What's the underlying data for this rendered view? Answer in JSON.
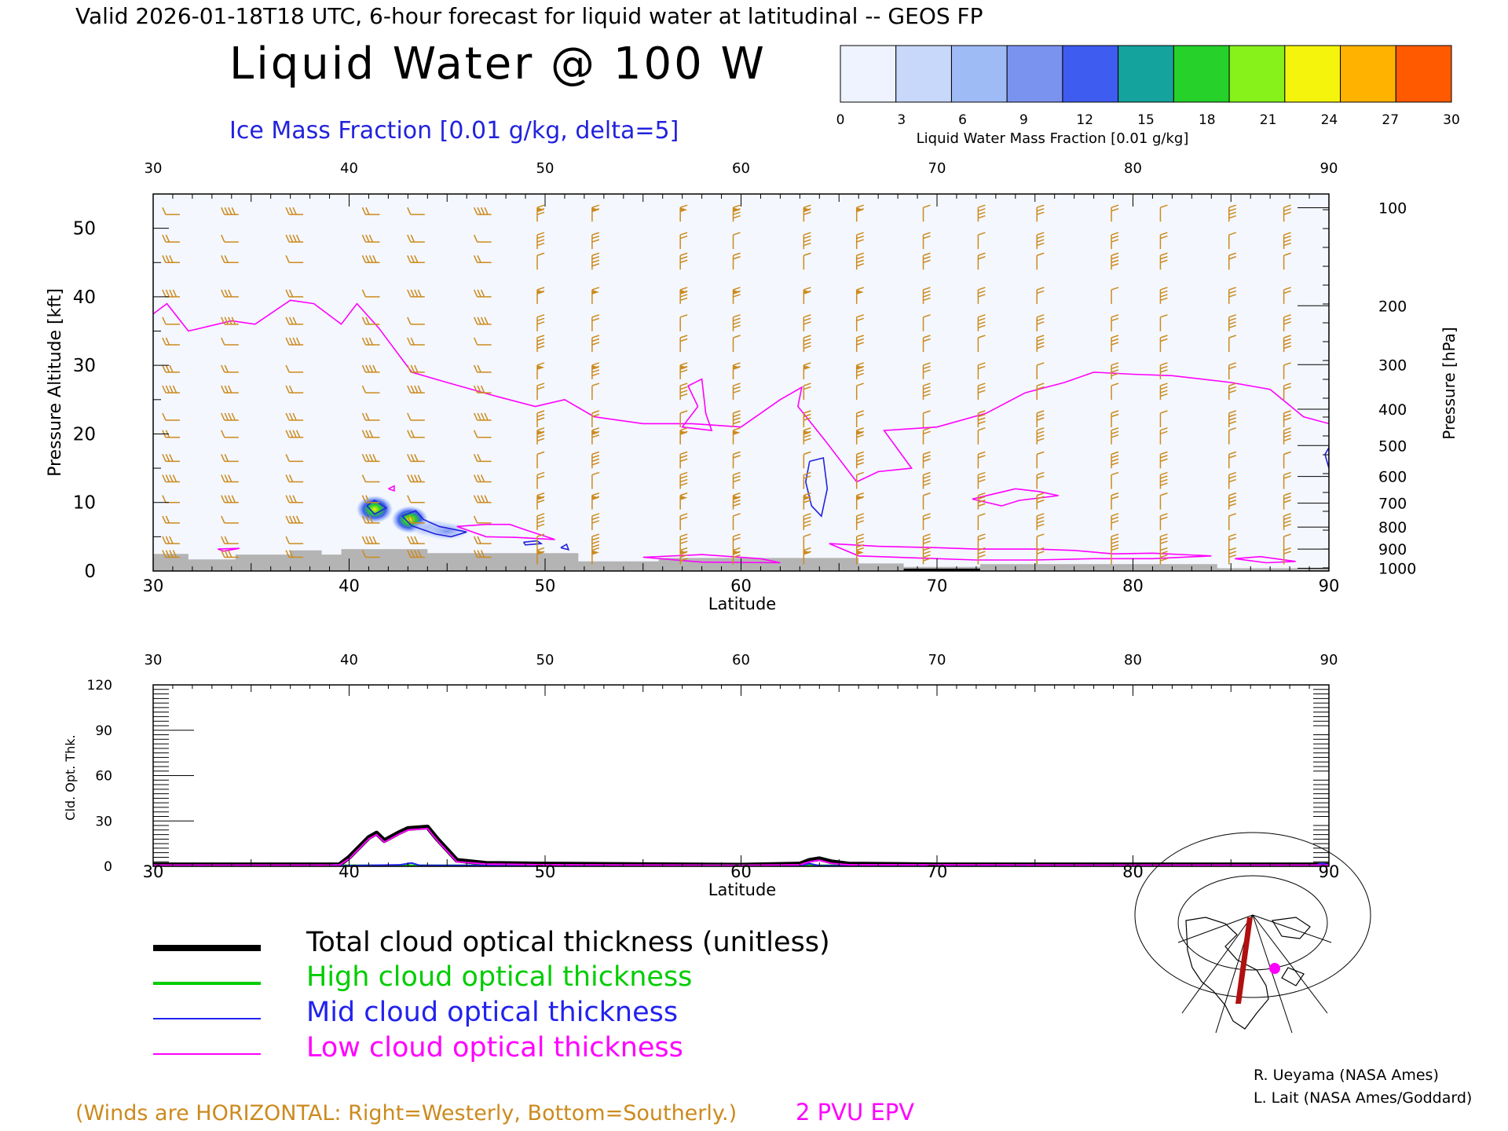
{
  "header": {
    "valid_line": "Valid 2026-01-18T18 UTC, 6-hour forecast for liquid water at latitudinal -- GEOS FP",
    "title": "Liquid Water @ 100 W",
    "subtitle": "Ice Mass Fraction [0.01 g/kg, delta=5]"
  },
  "colorbar": {
    "label": "Liquid Water Mass Fraction [0.01 g/kg]",
    "ticks": [
      "0",
      "3",
      "6",
      "9",
      "12",
      "15",
      "18",
      "21",
      "24",
      "27",
      "30"
    ],
    "colors": [
      "#eef3ff",
      "#c7d8fb",
      "#9fbbf6",
      "#7a93ef",
      "#3f5cf0",
      "#14a39d",
      "#26d12a",
      "#86f21a",
      "#f4f40c",
      "#ffb200",
      "#ff5a00"
    ]
  },
  "colors": {
    "ice_contour": "#2222dd",
    "epv": "#ff00ff",
    "wind_barb": "#cc8a1e",
    "terrain": "#b4b4b4",
    "liquid_water_bg": "#f4f7fd",
    "high_cloud": "#00cc00",
    "mid_cloud": "#2222ee",
    "low_cloud": "#ff00ff",
    "total_cloud": "#000000",
    "flight_track": "#b01010",
    "site_marker": "#ff00ff"
  },
  "chart_data": [
    {
      "type": "line",
      "name": "upper-panel",
      "xlim": [
        30,
        90
      ],
      "x_ticks": [
        "30",
        "40",
        "50",
        "60",
        "70",
        "80",
        "90"
      ],
      "xlabel": "Latitude",
      "ylabel": "Pressure Altitude [kft]",
      "ylim": [
        0,
        55
      ],
      "y_ticks": [
        "0",
        "10",
        "20",
        "30",
        "40",
        "50"
      ],
      "y2label": "Pressure [hPa]",
      "pressure_levels": [
        {
          "label": "100",
          "kft": 53.0
        },
        {
          "label": "200",
          "kft": 38.7
        },
        {
          "label": "300",
          "kft": 30.1
        },
        {
          "label": "400",
          "kft": 23.6
        },
        {
          "label": "500",
          "kft": 18.3
        },
        {
          "label": "600",
          "kft": 13.8
        },
        {
          "label": "700",
          "kft": 9.9
        },
        {
          "label": "800",
          "kft": 6.4
        },
        {
          "label": "900",
          "kft": 3.2
        },
        {
          "label": "1000",
          "kft": 0.4
        }
      ],
      "epv_2pvu": {
        "name": "2 PVU EPV",
        "tropopause": [
          [
            30,
            37.5
          ],
          [
            30.7,
            39.0
          ],
          [
            31.8,
            35.0
          ],
          [
            34,
            36.5
          ],
          [
            35.2,
            36.0
          ],
          [
            37,
            39.5
          ],
          [
            38.2,
            39.0
          ],
          [
            39.6,
            36.0
          ],
          [
            40.4,
            39.0
          ],
          [
            41.5,
            35.5
          ],
          [
            43.2,
            29.0
          ],
          [
            45,
            27.5
          ],
          [
            47.5,
            25.5
          ],
          [
            49.5,
            24.0
          ],
          [
            51,
            25.0
          ],
          [
            52.5,
            22.5
          ],
          [
            55,
            21.5
          ],
          [
            57.5,
            21.5
          ],
          [
            60,
            21.0
          ],
          [
            62,
            25.0
          ],
          [
            63.1,
            26.8
          ],
          [
            62.9,
            24.0
          ],
          [
            64.3,
            19.0
          ],
          [
            65.9,
            13.0
          ],
          [
            67,
            14.5
          ],
          [
            68.7,
            15.0
          ],
          [
            67.3,
            20.5
          ],
          [
            70,
            21.0
          ],
          [
            72.5,
            23.0
          ],
          [
            74.5,
            26.0
          ],
          [
            76.5,
            27.5
          ],
          [
            78,
            29.0
          ],
          [
            80,
            28.7
          ],
          [
            82,
            28.5
          ],
          [
            85,
            27.5
          ],
          [
            87,
            26.5
          ],
          [
            88.7,
            22.5
          ],
          [
            90,
            21.5
          ]
        ],
        "closed_lobe": [
          [
            57.8,
            24.0
          ],
          [
            57.0,
            21.0
          ],
          [
            58.5,
            20.5
          ],
          [
            58.2,
            23.0
          ],
          [
            58.0,
            28.0
          ],
          [
            57.3,
            27.0
          ],
          [
            57.8,
            24.0
          ]
        ],
        "low_level_a": [
          [
            64.5,
            4.0
          ],
          [
            67,
            3.6
          ],
          [
            70,
            3.4
          ],
          [
            72,
            3.2
          ],
          [
            75,
            3.2
          ],
          [
            77,
            3.0
          ],
          [
            79,
            2.5
          ],
          [
            81,
            2.6
          ],
          [
            84,
            2.2
          ],
          [
            81,
            1.8
          ],
          [
            78,
            1.8
          ],
          [
            75,
            1.6
          ],
          [
            72,
            1.6
          ],
          [
            69,
            1.9
          ],
          [
            66,
            2.2
          ],
          [
            64.5,
            4.0
          ]
        ],
        "low_level_b": [
          [
            61,
            1.8
          ],
          [
            58,
            2.4
          ],
          [
            55,
            2.0
          ],
          [
            58,
            1.3
          ],
          [
            62,
            1.2
          ],
          [
            61,
            1.8
          ]
        ],
        "low_level_c": [
          [
            71.8,
            10.5
          ],
          [
            74,
            12.0
          ],
          [
            75.2,
            11.6
          ],
          [
            76.2,
            11.0
          ],
          [
            74.2,
            10.3
          ],
          [
            73.3,
            9.5
          ],
          [
            71.8,
            10.5
          ]
        ],
        "low_level_d": [
          [
            45.5,
            6.5
          ],
          [
            47,
            6.8
          ],
          [
            48.2,
            6.8
          ],
          [
            49,
            6.0
          ],
          [
            50.5,
            4.6
          ],
          [
            48.5,
            4.9
          ],
          [
            47,
            5.0
          ],
          [
            45.5,
            6.5
          ]
        ],
        "low_level_e": [
          [
            85.2,
            1.8
          ],
          [
            86.5,
            2.1
          ],
          [
            88.3,
            1.4
          ],
          [
            86.8,
            1.2
          ],
          [
            85.2,
            1.8
          ]
        ],
        "low_level_f": [
          [
            33.3,
            3.2
          ],
          [
            34.4,
            3.3
          ],
          [
            33.6,
            2.9
          ],
          [
            33.3,
            3.2
          ]
        ],
        "low_level_g": [
          [
            42.0,
            12.0
          ],
          [
            42.3,
            12.4
          ],
          [
            42.3,
            11.7
          ],
          [
            42.0,
            12.0
          ]
        ]
      },
      "ice_contours": [
        [
          [
            40.9,
            9.5
          ],
          [
            41.3,
            10.3
          ],
          [
            41.9,
            9.2
          ],
          [
            41.3,
            8.3
          ],
          [
            40.9,
            9.5
          ]
        ],
        [
          [
            42.7,
            8.0
          ],
          [
            43.4,
            8.8
          ],
          [
            43.8,
            7.5
          ],
          [
            44.6,
            6.5
          ],
          [
            46,
            5.7
          ],
          [
            45.2,
            5.0
          ],
          [
            44.4,
            5.4
          ],
          [
            43.2,
            6.6
          ],
          [
            42.7,
            8.0
          ]
        ],
        [
          [
            48.9,
            4.2
          ],
          [
            49.6,
            4.4
          ],
          [
            49.8,
            4.0
          ],
          [
            49.0,
            3.8
          ],
          [
            48.9,
            4.2
          ]
        ],
        [
          [
            50.8,
            3.4
          ],
          [
            51.1,
            3.9
          ],
          [
            51.2,
            3.1
          ],
          [
            50.8,
            3.4
          ]
        ],
        [
          [
            63.5,
            16.0
          ],
          [
            64.2,
            16.5
          ],
          [
            64.4,
            12.0
          ],
          [
            64.1,
            8.0
          ],
          [
            63.6,
            9.5
          ],
          [
            63.3,
            13.0
          ],
          [
            63.5,
            16.0
          ]
        ],
        [
          [
            89.8,
            17.0
          ],
          [
            90.0,
            18.0
          ],
          [
            90.0,
            15.0
          ],
          [
            89.8,
            17.0
          ]
        ]
      ],
      "liquid_water_maxima": [
        {
          "lat": 41.3,
          "kft": 9.0,
          "value": 18
        },
        {
          "lat": 43.1,
          "kft": 7.5,
          "value": 16
        },
        {
          "lat": 44.3,
          "kft": 6.2,
          "value": 8
        },
        {
          "lat": 45.0,
          "kft": 5.8,
          "value": 6
        }
      ],
      "terrain": [
        [
          30,
          2.5
        ],
        [
          31.8,
          2.5
        ],
        [
          31.8,
          1.7
        ],
        [
          34.2,
          1.7
        ],
        [
          34.2,
          2.4
        ],
        [
          37,
          2.4
        ],
        [
          37,
          3.0
        ],
        [
          38.6,
          3.0
        ],
        [
          38.6,
          2.4
        ],
        [
          39.6,
          2.4
        ],
        [
          39.6,
          3.2
        ],
        [
          44,
          3.2
        ],
        [
          44,
          2.6
        ],
        [
          51.7,
          2.6
        ],
        [
          51.7,
          1.4
        ],
        [
          55.8,
          1.4
        ],
        [
          55.8,
          1.9
        ],
        [
          66,
          1.9
        ],
        [
          66,
          1.1
        ],
        [
          68.3,
          1.1
        ],
        [
          68.3,
          0.6
        ],
        [
          72.2,
          0.6
        ],
        [
          72.2,
          1.0
        ],
        [
          84.3,
          1.0
        ],
        [
          84.3,
          0.4
        ],
        [
          90,
          0.4
        ]
      ],
      "wind_barb_columns": [
        31,
        34,
        37.3,
        41.2,
        43.5,
        46.9,
        49.6,
        52.4,
        56.9,
        59.6,
        63.2,
        65.9,
        69.3,
        72.1,
        75.1,
        78.9,
        81.4,
        84.9,
        87.7
      ]
    },
    {
      "type": "line",
      "name": "lower-panel",
      "xlim": [
        30,
        90
      ],
      "x_ticks": [
        "30",
        "40",
        "50",
        "60",
        "70",
        "80",
        "90"
      ],
      "xlabel": "Latitude",
      "ylabel": "Cld. Opt. Thk.",
      "ylim": [
        0,
        120
      ],
      "y_ticks": [
        "0",
        "30",
        "60",
        "90",
        "120"
      ],
      "series": [
        {
          "name": "Total cloud optical thickness (unitless)",
          "color": "#000000",
          "points": [
            [
              30,
              1
            ],
            [
              39.5,
              1
            ],
            [
              40,
              6
            ],
            [
              41,
              19
            ],
            [
              41.4,
              22
            ],
            [
              41.8,
              17
            ],
            [
              42.5,
              22
            ],
            [
              43,
              25
            ],
            [
              44,
              26
            ],
            [
              44.5,
              18
            ],
            [
              45.5,
              4
            ],
            [
              47,
              2
            ],
            [
              50,
              1.5
            ],
            [
              60,
              0.8
            ],
            [
              63,
              1.5
            ],
            [
              63.5,
              4
            ],
            [
              64,
              5
            ],
            [
              64.6,
              3
            ],
            [
              65.5,
              1.5
            ],
            [
              70,
              1
            ],
            [
              80,
              1
            ],
            [
              90,
              1
            ]
          ]
        },
        {
          "name": "High cloud optical thickness",
          "color": "#00cc00",
          "points": [
            [
              30,
              0.3
            ],
            [
              90,
              0.3
            ]
          ]
        },
        {
          "name": "Mid cloud optical thickness",
          "color": "#2222ee",
          "points": [
            [
              30,
              0.4
            ],
            [
              39,
              0.4
            ],
            [
              39.3,
              1.2
            ],
            [
              39.6,
              0.4
            ],
            [
              41,
              0.6
            ],
            [
              42.6,
              1
            ],
            [
              43.2,
              2.2
            ],
            [
              43.6,
              0.6
            ],
            [
              50,
              0.4
            ],
            [
              63,
              0.4
            ],
            [
              63.5,
              1.8
            ],
            [
              64,
              0.4
            ],
            [
              89.3,
              0.4
            ],
            [
              89.6,
              2
            ],
            [
              90,
              1
            ]
          ]
        },
        {
          "name": "Low cloud optical thickness",
          "color": "#ff00ff",
          "points": [
            [
              30,
              0.8
            ],
            [
              39.5,
              0.8
            ],
            [
              40,
              5
            ],
            [
              41,
              18
            ],
            [
              41.4,
              21
            ],
            [
              41.8,
              16
            ],
            [
              42.5,
              21
            ],
            [
              43,
              24
            ],
            [
              44,
              25
            ],
            [
              44.5,
              17
            ],
            [
              45.5,
              3
            ],
            [
              47,
              1.5
            ],
            [
              50,
              1
            ],
            [
              60,
              0.6
            ],
            [
              63,
              1
            ],
            [
              63.5,
              3
            ],
            [
              64,
              4
            ],
            [
              64.6,
              2
            ],
            [
              65.5,
              1
            ],
            [
              80,
              0.8
            ],
            [
              90,
              0.8
            ]
          ]
        }
      ]
    }
  ],
  "legend": [
    {
      "label": "Total cloud optical thickness (unitless)",
      "color": "#000000"
    },
    {
      "label": "High cloud optical thickness",
      "color": "#00cc00"
    },
    {
      "label": "Mid cloud optical thickness",
      "color": "#2222ee"
    },
    {
      "label": "Low cloud optical thickness",
      "color": "#ff00ff"
    }
  ],
  "inset_map": {
    "track_longitude": "100 W",
    "track_lat_range": [
      30,
      90
    ]
  },
  "footer": {
    "winds_note": "(Winds are HORIZONTAL: Right=Westerly, Bottom=Southerly.)",
    "epv_label": "2 PVU EPV",
    "credit_1": "R. Ueyama (NASA Ames)",
    "credit_2": "L. Lait (NASA Ames/Goddard)"
  }
}
